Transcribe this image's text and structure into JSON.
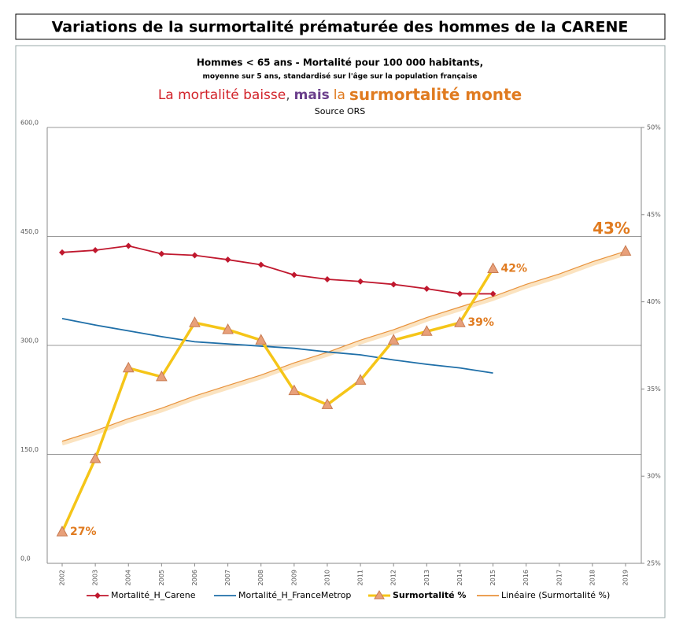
{
  "chart_data": {
    "type": "line",
    "title": "Variations de la surmortalité prématurée des hommes de la CARENE",
    "subtitle": "Hommes < 65 ans - Mortalité pour 100 000 habitants,",
    "subtitle2": "moyenne sur 5 ans, standardisé  sur l'âge sur la population  française",
    "headline": [
      {
        "text": "La mortalité baisse",
        "color": "#d2232a"
      },
      {
        "text": ",",
        "color": "#555555"
      },
      {
        "text": "mais",
        "color": "#6b3f8c"
      },
      {
        "text": "la",
        "color": "#e07b20"
      },
      {
        "text": "surmortalité monte",
        "color": "#e07b20"
      }
    ],
    "source": "Source ORS",
    "categories": [
      "2002",
      "2003",
      "2004",
      "2005",
      "2006",
      "2007",
      "2008",
      "2009",
      "2010",
      "2011",
      "2012",
      "2013",
      "2014",
      "2015",
      "2016",
      "2017",
      "2018",
      "2019"
    ],
    "ylim": [
      0,
      600
    ],
    "yticks": [
      {
        "value": 0,
        "label": "0,0"
      },
      {
        "value": 150,
        "label": "150,0"
      },
      {
        "value": 300,
        "label": "300,0"
      },
      {
        "value": 450,
        "label": "450,0"
      },
      {
        "value": 600,
        "label": "600,0"
      }
    ],
    "y2lim": [
      25,
      50
    ],
    "y2ticks": [
      {
        "value": 25,
        "label": "25%"
      },
      {
        "value": 30,
        "label": "30%"
      },
      {
        "value": 35,
        "label": "35%"
      },
      {
        "value": 40,
        "label": "40%"
      },
      {
        "value": 45,
        "label": "45%"
      },
      {
        "value": 50,
        "label": "50%"
      }
    ],
    "grid": true,
    "series": [
      {
        "name": "Mortalité_H_Carene",
        "color": "#c0182e",
        "marker": "diamond",
        "values": [
          428,
          431,
          437,
          426,
          424,
          418,
          411,
          397,
          391,
          388,
          384,
          378,
          371,
          371,
          null,
          null,
          null,
          null
        ]
      },
      {
        "name": "Mortalité_H_FranceMetrop",
        "color": "#1f6fa8",
        "marker": "none",
        "values": [
          337,
          328,
          320,
          312,
          305,
          302,
          299,
          296,
          291,
          287,
          280,
          274,
          269,
          262,
          null,
          null,
          null,
          null
        ]
      },
      {
        "name": "Surmortalité %",
        "color": "#f5c518",
        "marker": "triangle",
        "axis": "y2",
        "values": [
          26.8,
          31.0,
          36.2,
          35.7,
          38.8,
          38.4,
          37.8,
          34.9,
          34.1,
          35.5,
          37.8,
          38.3,
          38.8,
          41.9,
          null,
          null,
          null,
          42.9
        ],
        "value_labels": [
          "27%",
          null,
          null,
          null,
          null,
          null,
          null,
          null,
          null,
          null,
          null,
          null,
          "39%",
          "42%",
          null,
          null,
          null,
          "43%"
        ]
      },
      {
        "name": "Linéaire (Surmortalité %)",
        "color": "#e8923c",
        "marker": "none",
        "axis": "y2",
        "values": [
          32.0,
          32.6,
          33.3,
          33.9,
          34.6,
          35.2,
          35.8,
          36.5,
          37.1,
          37.8,
          38.4,
          39.1,
          39.7,
          40.3,
          41.0,
          41.6,
          42.3,
          42.9
        ]
      }
    ]
  }
}
